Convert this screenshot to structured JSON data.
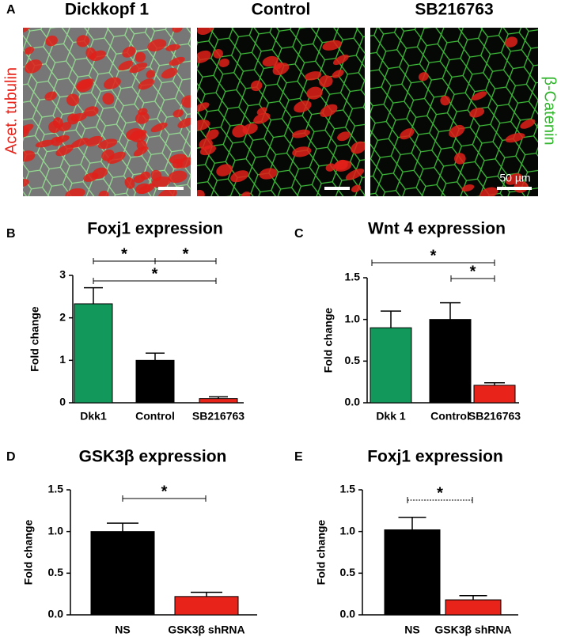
{
  "figure": {
    "panel": "A",
    "image_titles": [
      "Dickkopf 1",
      "Control",
      "SB216763"
    ],
    "left_label": "Acet. tubulin",
    "right_label": "β-Catenin",
    "scale_bar": "50 µm"
  },
  "chart_data": [
    {
      "type": "bar",
      "panel": "B",
      "title": "Foxj1 expression",
      "y_label": "Fold change",
      "categories": [
        "Dkk1",
        "Control",
        "SB216763"
      ],
      "values": [
        2.33,
        1.0,
        0.1
      ],
      "errors": [
        0.38,
        0.17,
        0.04
      ],
      "colors": [
        "#12985a",
        "#000000",
        "#e8231a"
      ],
      "ylim": [
        0,
        3
      ],
      "yticks": [
        0,
        1,
        2,
        3
      ],
      "annotations": [
        "*",
        "*",
        "*"
      ]
    },
    {
      "type": "bar",
      "panel": "C",
      "title": "Wnt 4 expression",
      "y_label": "Fold change",
      "categories": [
        "Dkk 1",
        "Control",
        "SB216763"
      ],
      "values": [
        0.9,
        1.0,
        0.21
      ],
      "errors": [
        0.2,
        0.2,
        0.03
      ],
      "colors": [
        "#12985a",
        "#000000",
        "#e8231a"
      ],
      "ylim": [
        0,
        1.5
      ],
      "yticks": [
        {
          "value": 0,
          "label": "0.0"
        },
        0.5,
        {
          "value": 1,
          "label": "1.0"
        },
        1.5
      ],
      "annotations": [
        "*",
        "*"
      ]
    },
    {
      "type": "bar",
      "panel": "D",
      "title": "GSK3β expression",
      "y_label": "Fold change",
      "categories": [
        "NS",
        "GSK3β shRNA"
      ],
      "values": [
        1.0,
        0.22
      ],
      "errors": [
        0.1,
        0.05
      ],
      "colors": [
        "#000000",
        "#e8231a"
      ],
      "ylim": [
        0,
        1.5
      ],
      "yticks": [
        {
          "value": 0,
          "label": "0.0"
        },
        0.5,
        {
          "value": 1,
          "label": "1.0"
        },
        1.5
      ],
      "annotations": [
        "*"
      ]
    },
    {
      "type": "bar",
      "panel": "E",
      "title": "Foxj1 expression",
      "y_label": "Fold change",
      "categories": [
        "NS",
        "GSK3β shRNA"
      ],
      "values": [
        1.02,
        0.18
      ],
      "errors": [
        0.15,
        0.05
      ],
      "colors": [
        "#000000",
        "#e8231a"
      ],
      "ylim": [
        0,
        1.5
      ],
      "yticks": [
        {
          "value": 0,
          "label": "0.0"
        },
        0.5,
        {
          "value": 1,
          "label": "1.0"
        },
        1.5
      ],
      "annotations": [
        "*"
      ]
    }
  ]
}
